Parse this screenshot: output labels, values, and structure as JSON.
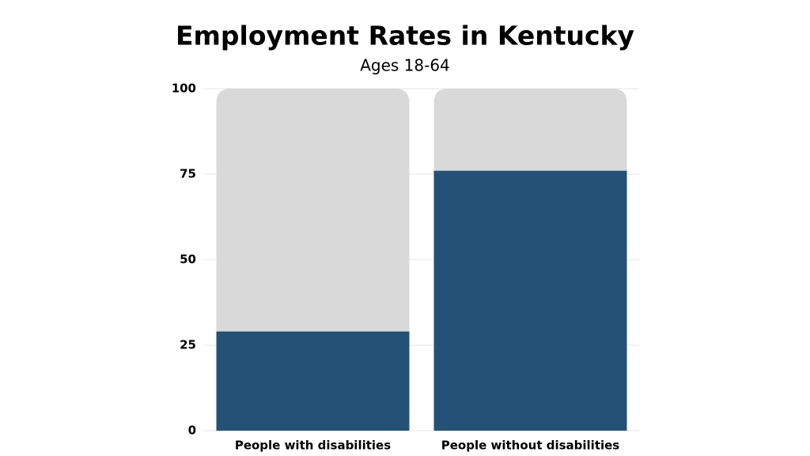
{
  "chart_data": {
    "type": "bar",
    "title": "Employment Rates in Kentucky",
    "subtitle": "Ages 18-64",
    "categories": [
      "People with disabilities",
      "People without disabilities"
    ],
    "values": [
      29,
      76
    ],
    "color": "#235276",
    "track_color": "#d9d9d9",
    "ylim": [
      0,
      100
    ],
    "yticks": [
      0,
      25,
      50,
      75,
      100
    ],
    "grid": true
  }
}
